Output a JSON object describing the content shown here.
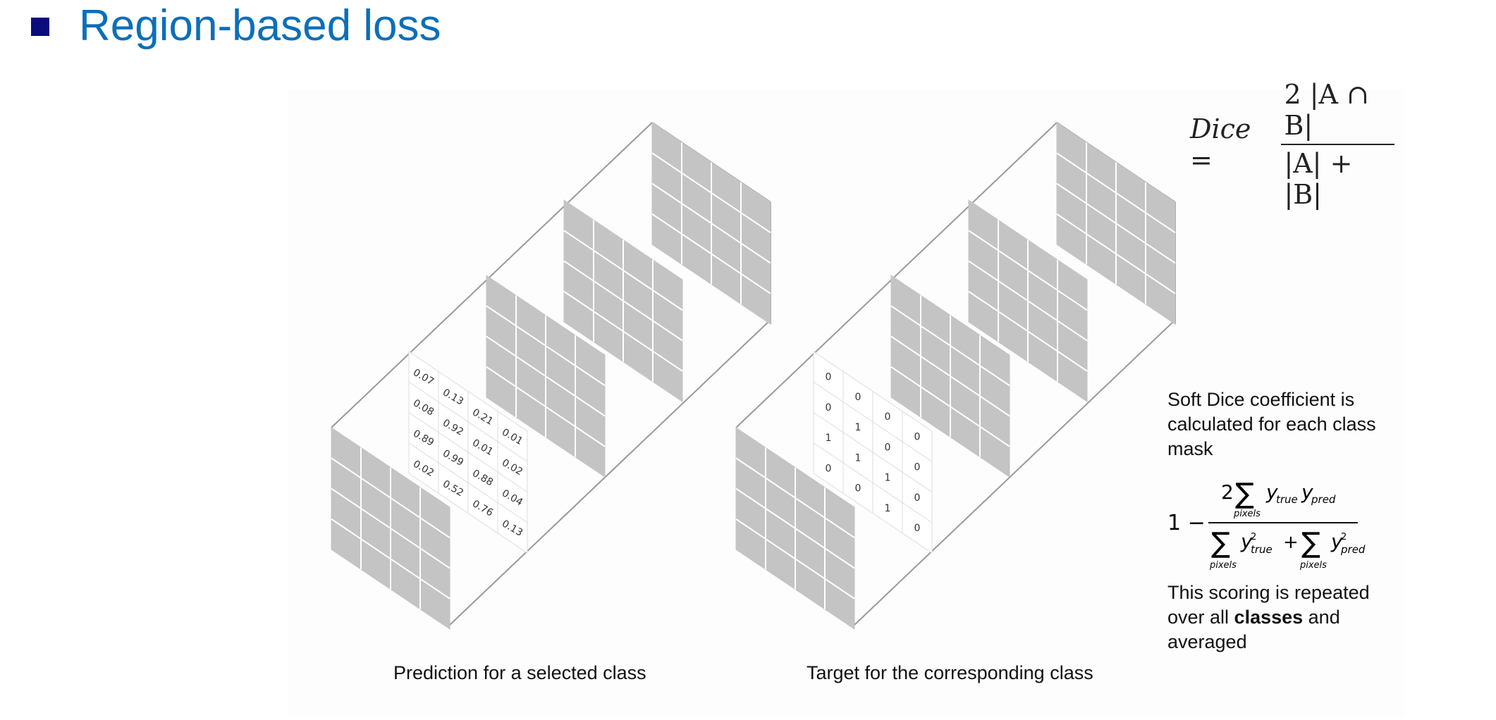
{
  "slide": {
    "title": "Region-based loss"
  },
  "dice_formula": {
    "lhs": "Dice =",
    "numerator": "2 |A ∩ B|",
    "denominator": "|A| + |B|"
  },
  "soft_dice": {
    "description": "Soft Dice coefficient is calculated for each class mask",
    "one_minus": "1 −",
    "two": "2",
    "sum": "∑",
    "pixels": "pixels",
    "y": "y",
    "sub_true": "true",
    "sub_pred": "pred",
    "sq": "2",
    "plus": "+",
    "note_prefix": "This scoring is repeated over all ",
    "note_bold": "classes",
    "note_suffix": " and averaged"
  },
  "captions": {
    "prediction": "Prediction for a selected class",
    "target": "Target for the corresponding class"
  },
  "prediction_grid": [
    [
      "0.07",
      "0.13",
      "0.21",
      "0.01"
    ],
    [
      "0.08",
      "0.92",
      "0.01",
      "0.02"
    ],
    [
      "0.89",
      "0.99",
      "0.88",
      "0.04"
    ],
    [
      "0.02",
      "0.52",
      "0.76",
      "0.13"
    ]
  ],
  "target_grid": [
    [
      "0",
      "0",
      "0",
      "0"
    ],
    [
      "0",
      "1",
      "0",
      "0"
    ],
    [
      "1",
      "1",
      "1",
      "0"
    ],
    [
      "0",
      "0",
      "1",
      "0"
    ]
  ],
  "colors": {
    "title": "#0b6fb8",
    "bullet": "#0b0b80",
    "plane_fill": "#c4c4c4",
    "plane_line": "#ffffff",
    "box_line": "#999999"
  }
}
